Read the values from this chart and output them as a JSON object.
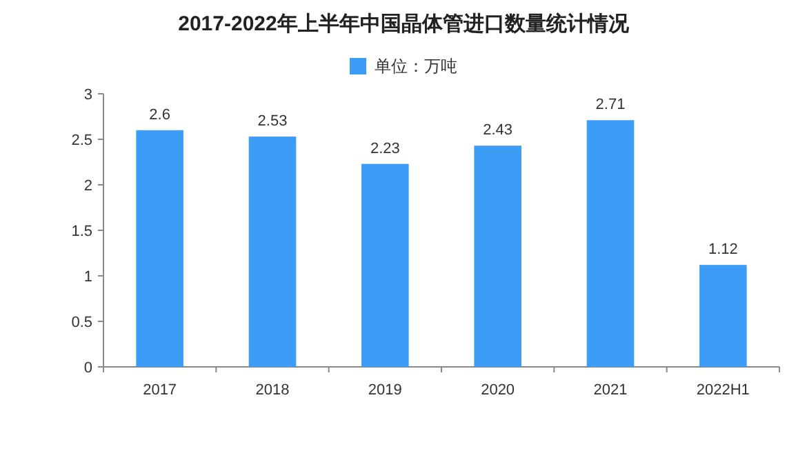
{
  "chart_data": {
    "type": "bar",
    "title": "2017-2022年上半年中国晶体管进口数量统计情况",
    "categories": [
      "2017",
      "2018",
      "2019",
      "2020",
      "2021",
      "2022H1"
    ],
    "series": [
      {
        "name": "单位：万吨",
        "color": "#3d9cf5",
        "values": [
          2.6,
          2.53,
          2.23,
          2.43,
          2.71,
          1.12
        ]
      }
    ],
    "ylim": [
      0,
      3
    ],
    "yticks": [
      0,
      0.5,
      1,
      1.5,
      2,
      2.5,
      3
    ],
    "data_labels": true,
    "legend": "top",
    "grid": false
  }
}
